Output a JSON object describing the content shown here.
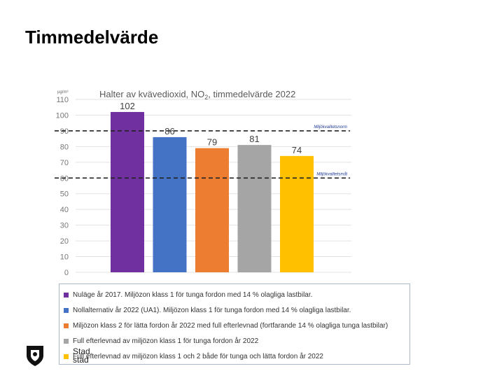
{
  "slide": {
    "title": "Timmedelvärde"
  },
  "chart_data": {
    "type": "bar",
    "title_prefix": "Halter av kvävedioxid, NO",
    "title_sub": "2",
    "title_suffix": ", timmedelvärde 2022",
    "ylabel": "µg/m³",
    "ylim": [
      0,
      110
    ],
    "yticks": [
      0,
      10,
      20,
      30,
      40,
      50,
      60,
      70,
      80,
      90,
      100,
      110
    ],
    "grid": true,
    "categories": [
      "Nuläge år 2017. Miljözon klass 1 för tunga fordon med 14 % olagliga lastbilar.",
      "Nollalternativ år 2022 (UA1). Miljözon klass 1 för tunga fordon med 14 % olagliga lastbilar.",
      "Miljözon klass 2 för lätta fordon år 2022 med full efterlevnad (fortfarande 14 % olagliga tunga lastbilar)",
      "Full efterlevnad av miljözon klass 1 för tunga fordon år 2022",
      "Full efterlevnad av miljözon klass 1 och 2 både för tunga och lätta fordon år 2022"
    ],
    "values": [
      102,
      86,
      79,
      81,
      74
    ],
    "labels": [
      "102",
      "86",
      "79",
      "81",
      "74"
    ],
    "colors": [
      "#7030a0",
      "#4472c4",
      "#ed7d31",
      "#a5a5a5",
      "#ffc000"
    ],
    "reference_lines": [
      {
        "value": 90,
        "label": "Miljökvalitetsnorm"
      },
      {
        "value": 60,
        "label": "Miljökvalitetsmål"
      }
    ],
    "legend_position": "bottom"
  },
  "logo": {
    "line1": "Stad",
    "line2": "stad"
  }
}
